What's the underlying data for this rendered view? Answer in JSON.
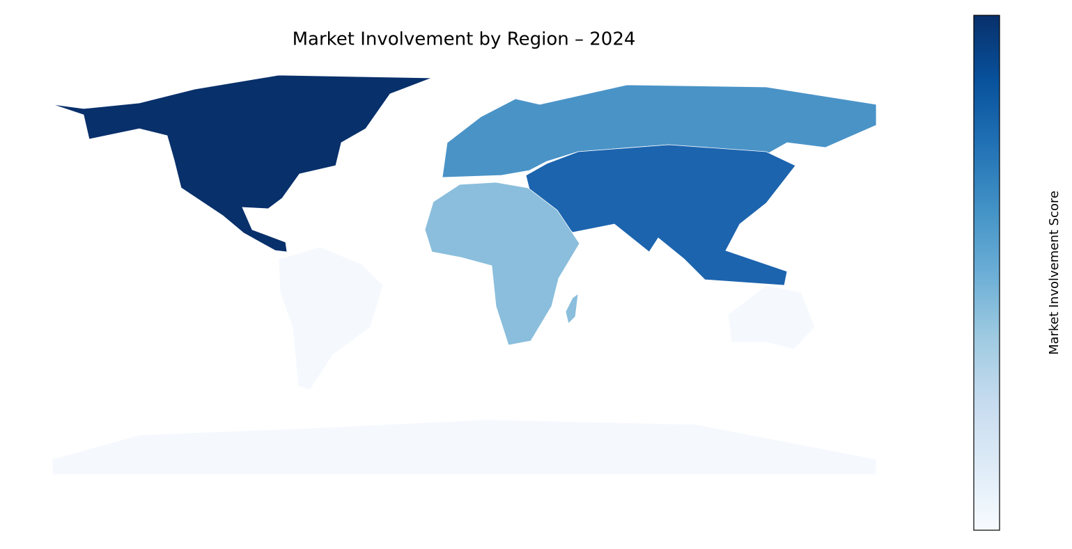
{
  "chart_data": {
    "type": "choropleth",
    "title": "Market Involvement by Region – 2024",
    "colorbar_label": "Market Involvement Score",
    "colormap": [
      "#f7fbff",
      "#deebf7",
      "#c6dbef",
      "#9ecae1",
      "#6baed6",
      "#4292c6",
      "#2171b5",
      "#08519c",
      "#08306b"
    ],
    "region_colors": [
      "#08306b",
      "#1c64ae",
      "#4a93c7",
      "#8abedc",
      "#f5f9fe"
    ]
  }
}
